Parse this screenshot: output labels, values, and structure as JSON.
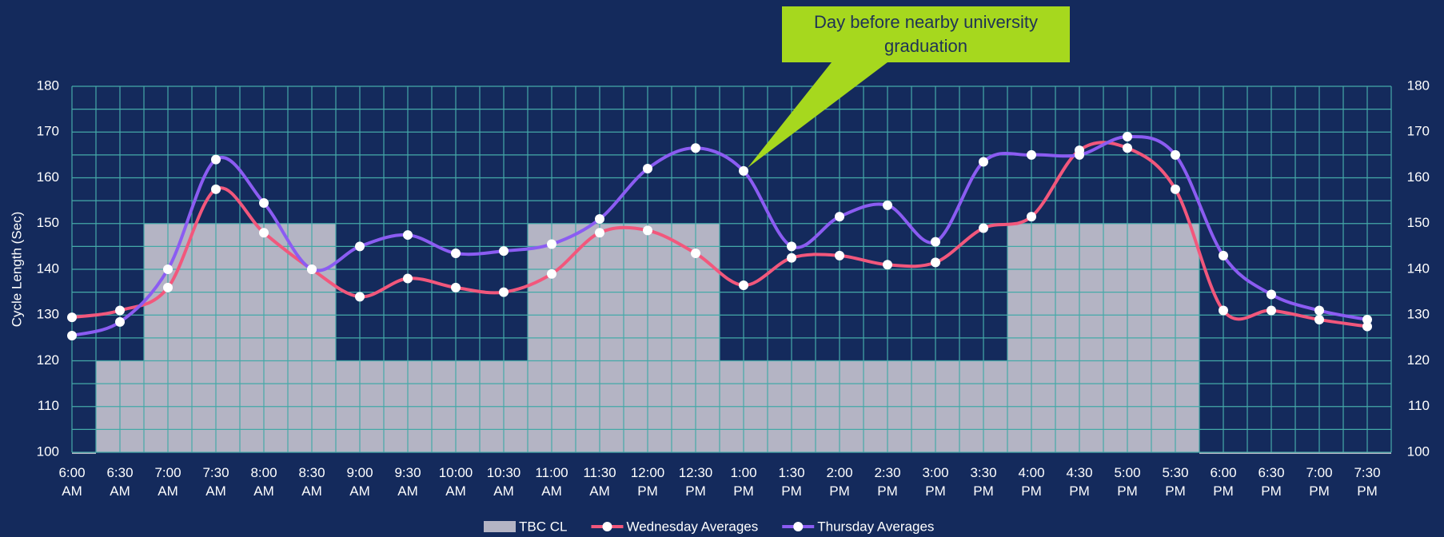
{
  "chart_data": {
    "type": "combo",
    "y_label": "Cycle Length (Sec)",
    "annotation": "Day before nearby university graduation",
    "categories": [
      "6:00 AM",
      "6:30 AM",
      "7:00 AM",
      "7:30 AM",
      "8:00 AM",
      "8:30 AM",
      "9:00 AM",
      "9:30 AM",
      "10:00 AM",
      "10:30 AM",
      "11:00 AM",
      "11:30 AM",
      "12:00 PM",
      "12:30 PM",
      "1:00 PM",
      "1:30 PM",
      "2:00 PM",
      "2:30 PM",
      "3:00 PM",
      "3:30 PM",
      "4:00 PM",
      "4:30 PM",
      "5:00 PM",
      "5:30 PM",
      "6:00 PM",
      "6:30 PM",
      "7:00 PM",
      "7:30 PM"
    ],
    "series": [
      {
        "name": "TBC CL",
        "kind": "bar",
        "color": "#b4b4c4",
        "values": [
          100,
          120,
          150,
          150,
          150,
          150,
          120,
          120,
          120,
          120,
          150,
          150,
          150,
          150,
          120,
          120,
          120,
          120,
          120,
          120,
          150,
          150,
          150,
          150,
          100,
          100,
          100,
          100
        ]
      },
      {
        "name": "Wednesday Averages",
        "kind": "line",
        "color": "#f2577c",
        "values": [
          129.5,
          131,
          136,
          157.5,
          148,
          140,
          134,
          138,
          136,
          135,
          139,
          148,
          148.5,
          143.5,
          136.5,
          142.5,
          143,
          141,
          141.5,
          149,
          151.5,
          166,
          166.5,
          157.5,
          131,
          131,
          129,
          127.5
        ]
      },
      {
        "name": "Thursday Averages",
        "kind": "line",
        "color": "#8b5cf2",
        "values": [
          125.5,
          128.5,
          140,
          164,
          154.5,
          140,
          145,
          147.5,
          143.5,
          144,
          145.5,
          151,
          162,
          166.5,
          161.5,
          145,
          151.5,
          154,
          146,
          163.5,
          165,
          165,
          169,
          165,
          143,
          134.5,
          131,
          129
        ]
      }
    ],
    "ylim": [
      100,
      180
    ],
    "yticks": [
      100,
      110,
      120,
      130,
      140,
      150,
      160,
      170,
      180
    ],
    "grid": true
  }
}
